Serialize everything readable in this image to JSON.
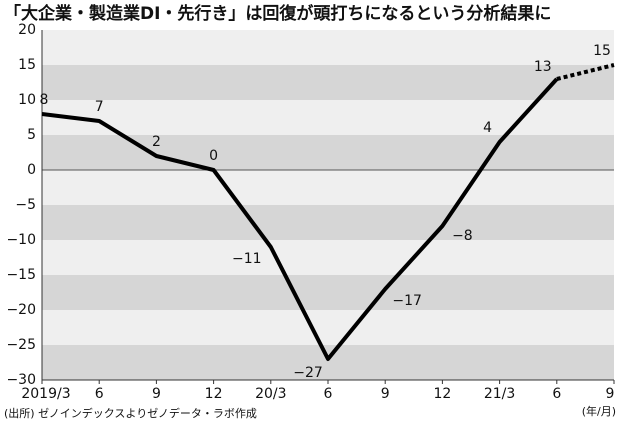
{
  "chart_data": {
    "type": "line",
    "title": "「大企業・製造業DI・先行き」は回復が頭打ちになるという分析結果に",
    "categories": [
      "2019/3",
      "6",
      "9",
      "12",
      "20/3",
      "6",
      "9",
      "12",
      "21/3",
      "6",
      "9"
    ],
    "values": [
      8,
      7,
      2,
      0,
      -11,
      -27,
      -17,
      -8,
      4,
      13,
      15
    ],
    "value_labels": [
      "8",
      "7",
      "2",
      "0",
      "−11",
      "−27",
      "−17",
      "−8",
      "4",
      "13",
      "15"
    ],
    "color": "#000000",
    "ylim": [
      -30,
      20
    ],
    "yticks": [
      20,
      15,
      10,
      5,
      0,
      {
        "value": -5,
        "label": "−5"
      },
      {
        "value": -10,
        "label": "−10"
      },
      {
        "value": -15,
        "label": "−15"
      },
      {
        "value": -20,
        "label": "−20"
      },
      {
        "value": -25,
        "label": "−25"
      },
      {
        "value": -30,
        "label": "−30"
      }
    ],
    "source": "(出所) ゼノインデックスよりゼノデータ・ラボ作成",
    "x_unit": "(年/月)"
  }
}
